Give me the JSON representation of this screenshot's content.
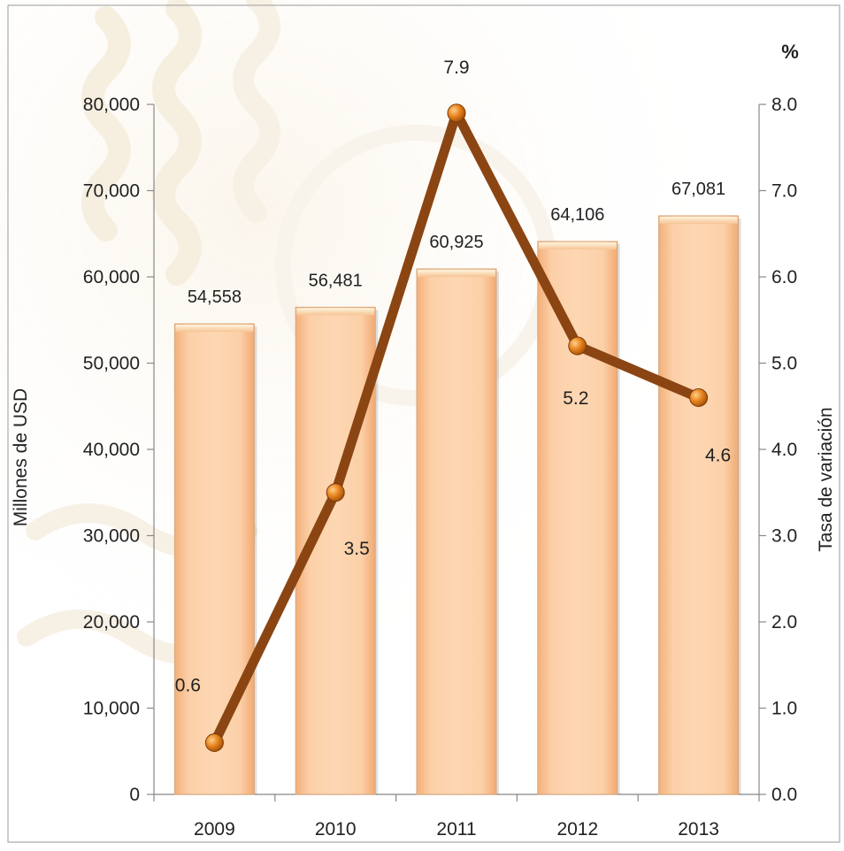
{
  "chart_data": {
    "type": "bar",
    "categories": [
      "2009",
      "2010",
      "2011",
      "2012",
      "2013"
    ],
    "series": [
      {
        "type": "bar",
        "axis": "left",
        "values": [
          54558,
          56481,
          60925,
          64106,
          67081
        ],
        "labels": [
          "54,558",
          "56,481",
          "60,925",
          "64,106",
          "67,081"
        ]
      },
      {
        "type": "line",
        "axis": "right",
        "values": [
          0.6,
          3.5,
          7.9,
          5.2,
          4.6
        ],
        "labels": [
          "0.6",
          "3.5",
          "7.9",
          "5.2",
          "4.6"
        ]
      }
    ],
    "ylabel": "Millones de USD",
    "y2label": "Tasa de variación",
    "y2unit": "%",
    "ylim": [
      0,
      80000
    ],
    "y2lim": [
      0,
      8
    ],
    "yticks": [
      "0",
      "10,000",
      "20,000",
      "30,000",
      "40,000",
      "50,000",
      "60,000",
      "70,000",
      "80,000"
    ],
    "y2ticks": [
      "0.0",
      "1.0",
      "2.0",
      "3.0",
      "4.0",
      "5.0",
      "6.0",
      "7.0",
      "8.0"
    ],
    "grid": false,
    "legend": "none",
    "colors": {
      "bar_fill": "#fbc99a",
      "bar_stroke": "#d9a578",
      "line": "#8b4513",
      "marker": "#e07b1a",
      "axis": "#888888"
    }
  }
}
